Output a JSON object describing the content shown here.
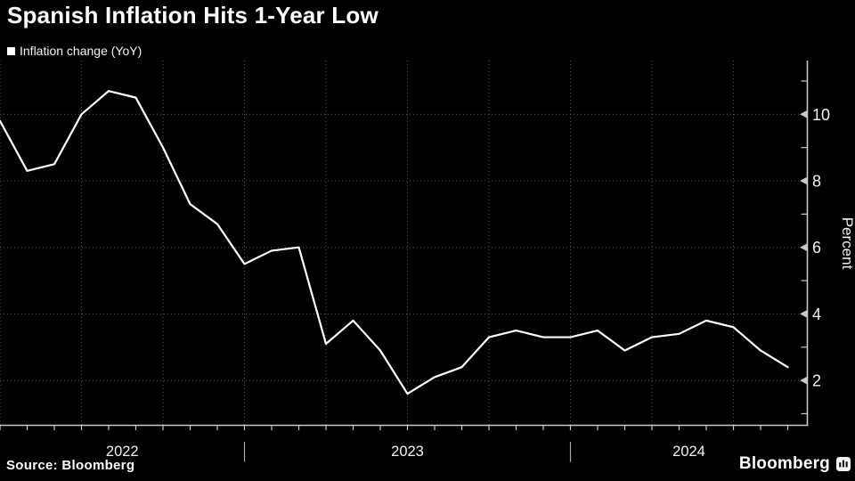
{
  "title": "Spanish Inflation Hits 1-Year Low",
  "legend": {
    "label": "Inflation change (YoY)",
    "marker_color": "#ffffff"
  },
  "source": "Source: Bloomberg",
  "brand": {
    "wordmark": "Bloomberg",
    "icon": "bloomberg-bars-icon"
  },
  "chart_data": {
    "type": "line",
    "title": "Spanish Inflation Hits 1-Year Low",
    "series": [
      {
        "name": "Inflation change (YoY)",
        "values": [
          9.8,
          8.3,
          8.5,
          10.0,
          10.7,
          10.5,
          9.0,
          7.3,
          6.7,
          5.5,
          5.9,
          6.0,
          3.1,
          3.8,
          2.9,
          1.6,
          2.1,
          2.4,
          3.3,
          3.5,
          3.3,
          3.3,
          3.5,
          2.9,
          3.3,
          3.4,
          3.8,
          3.6,
          2.9,
          2.4
        ]
      }
    ],
    "x": [
      "2022-03",
      "2022-04",
      "2022-05",
      "2022-06",
      "2022-07",
      "2022-08",
      "2022-09",
      "2022-10",
      "2022-11",
      "2022-12",
      "2023-01",
      "2023-02",
      "2023-03",
      "2023-04",
      "2023-05",
      "2023-06",
      "2023-07",
      "2023-08",
      "2023-09",
      "2023-10",
      "2023-11",
      "2023-12",
      "2024-01",
      "2024-02",
      "2024-03",
      "2024-04",
      "2024-05",
      "2024-06",
      "2024-07",
      "2024-08"
    ],
    "x_year_labels": [
      "2022",
      "2023",
      "2024"
    ],
    "xlabel": "",
    "ylabel": "Percent",
    "ylim": [
      0.6,
      11.6
    ],
    "y_ticks_labeled": [
      2,
      4,
      6,
      8,
      10
    ],
    "y_ticks_minor": [
      1,
      3,
      5,
      7,
      9,
      11
    ],
    "x_gridline_interval_months": 3,
    "year_separator_after": [
      "2022-12",
      "2023-12"
    ],
    "grid": "dotted",
    "legend_position": "top-left",
    "line_color": "#ffffff",
    "grid_color": "#585858",
    "axis_color": "#c9c9c9",
    "text_color": "#f2f2f2",
    "background": "#000000"
  }
}
